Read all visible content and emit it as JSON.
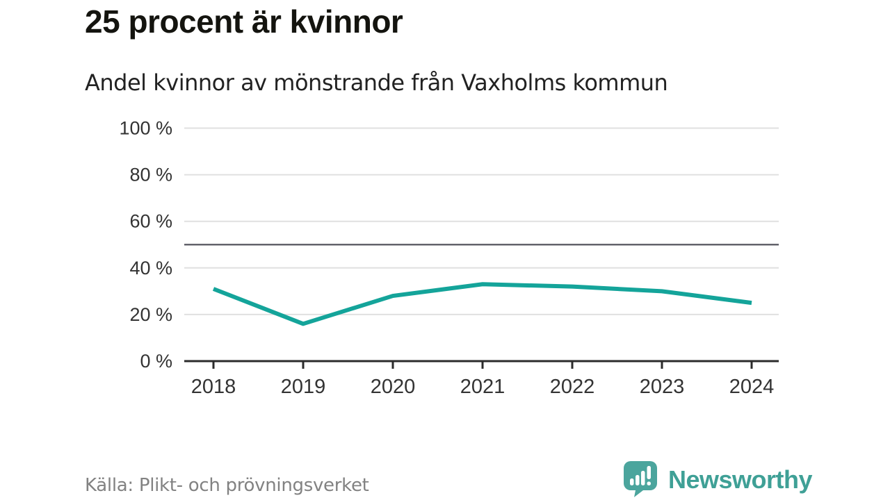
{
  "header": {
    "title": "25 procent är kvinnor",
    "subtitle": "Andel kvinnor av mönstrande från Vaxholms kommun"
  },
  "footer": {
    "source": "Källa: Plikt- och prövningsverket",
    "brand": "Newsworthy"
  },
  "colors": {
    "line": "#14a49a",
    "grid": "#e0e0e0",
    "reference_line": "#63636b",
    "axis": "#2b2b2b",
    "tick_label": "#333333",
    "title": "#14140f",
    "subtitle": "#222222",
    "source_text": "#828282",
    "brand_teal": "#4ba59d"
  },
  "chart_data": {
    "type": "line",
    "title": "25 procent är kvinnor",
    "subtitle": "Andel kvinnor av mönstrande från Vaxholms kommun",
    "x": [
      2018,
      2019,
      2020,
      2021,
      2022,
      2023,
      2024
    ],
    "x_labels": [
      "2018",
      "2019",
      "2020",
      "2021",
      "2022",
      "2023",
      "2024"
    ],
    "series": [
      {
        "name": "Andel kvinnor av mönstrande",
        "values": [
          31,
          16,
          28,
          33,
          32,
          30,
          25
        ]
      }
    ],
    "unit": "%",
    "ylim": [
      0,
      100
    ],
    "y_ticks": [
      0,
      20,
      40,
      60,
      80,
      100
    ],
    "y_tick_labels": [
      "0 %",
      "20 %",
      "40 %",
      "60 %",
      "80 %",
      "100 %"
    ],
    "reference_line": 50,
    "grid": true,
    "legend": false,
    "source": "Källa: Plikt- och prövningsverket"
  }
}
